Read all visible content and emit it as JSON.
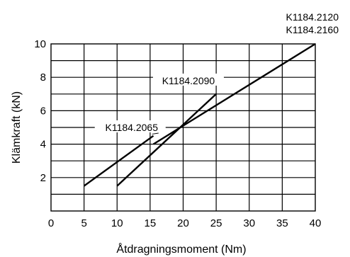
{
  "chart_data": {
    "type": "line",
    "title": "",
    "xlabel": "Åtdragningsmoment (Nm)",
    "ylabel": "Klämkraft (kN)",
    "xlim": [
      0,
      40
    ],
    "ylim": [
      0,
      10
    ],
    "x_ticks": [
      0,
      5,
      10,
      15,
      20,
      25,
      30,
      35,
      40
    ],
    "x_tick_labels": [
      "0",
      "5",
      "10",
      "15",
      "20",
      "25",
      "30",
      "35",
      "40"
    ],
    "y_ticks": [
      2,
      4,
      6,
      8,
      10
    ],
    "y_tick_labels": [
      "2",
      "4",
      "6",
      "8",
      "10"
    ],
    "grid": true,
    "grid_y_step": 1,
    "series": [
      {
        "name": "K1184.2065",
        "x": [
          5,
          15.5
        ],
        "y": [
          1.5,
          4.5
        ]
      },
      {
        "name": "K1184.2090",
        "x": [
          10,
          25
        ],
        "y": [
          1.5,
          7.0
        ]
      },
      {
        "name": "K1184.2120 / K1184.2160",
        "x": [
          15.5,
          40
        ],
        "y": [
          4.0,
          10.0
        ]
      }
    ],
    "annotations": [
      {
        "text": "K1184.2065",
        "x": 16.5,
        "y": 5.0
      },
      {
        "text": "K1184.2090",
        "x": 21.0,
        "y": 7.8
      },
      {
        "text": "K1184.2120",
        "x": 40,
        "y": 11.6
      },
      {
        "text": "K1184.2160",
        "x": 40,
        "y": 10.7
      }
    ]
  }
}
